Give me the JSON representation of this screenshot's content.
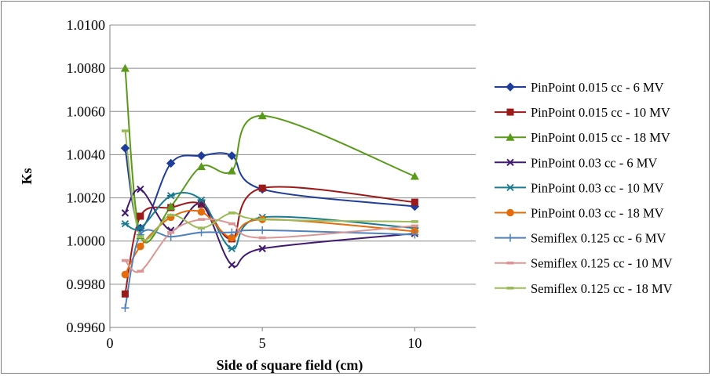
{
  "chart_data": {
    "type": "scatter",
    "title": "",
    "xlabel": "Side of square field (cm)",
    "ylabel": "Ks",
    "xlim": [
      0,
      12
    ],
    "ylim": [
      0.996,
      1.01
    ],
    "xticks": [
      0,
      5,
      10
    ],
    "xtick_labels": [
      "0",
      "5",
      "10"
    ],
    "yticks": [
      0.996,
      0.998,
      1.0,
      1.002,
      1.004,
      1.006,
      1.008,
      1.01
    ],
    "ytick_labels": [
      "0.9960",
      "0.9980",
      "1.0000",
      "1.0020",
      "1.0040",
      "1.0060",
      "1.0080",
      "1.0100"
    ],
    "grid": "horizontal",
    "legend_position": "right",
    "smooth_lines": true,
    "series": [
      {
        "name": "PinPoint 0.015 cc - 6 MV",
        "color": "#1f3d99",
        "marker": "diamond",
        "x": [
          0.5,
          1,
          2,
          3,
          4,
          5,
          10
        ],
        "y": [
          1.0043,
          1.0006,
          1.0036,
          1.00395,
          1.00395,
          1.0024,
          1.0016
        ]
      },
      {
        "name": "PinPoint 0.015 cc - 10 MV",
        "color": "#9b1b1b",
        "marker": "square",
        "x": [
          0.5,
          1,
          2,
          3,
          4,
          5,
          10
        ],
        "y": [
          0.99755,
          1.00115,
          1.00155,
          1.0017,
          1.0001,
          1.00245,
          1.0018
        ]
      },
      {
        "name": "PinPoint 0.015 cc - 18 MV",
        "color": "#5a9a1a",
        "marker": "triangle",
        "x": [
          0.5,
          1,
          2,
          3,
          4,
          5,
          10
        ],
        "y": [
          1.008,
          1.00025,
          1.0016,
          1.00345,
          1.00325,
          1.0058,
          1.003
        ]
      },
      {
        "name": "PinPoint 0.03 cc - 6 MV",
        "color": "#3f1a6e",
        "marker": "x",
        "x": [
          0.5,
          1,
          2,
          3,
          4,
          5,
          10
        ],
        "y": [
          1.0013,
          1.0024,
          1.0005,
          1.0017,
          0.9989,
          0.99965,
          1.00035
        ]
      },
      {
        "name": "PinPoint 0.03 cc - 10 MV",
        "color": "#1a7a90",
        "marker": "asterisk",
        "x": [
          0.5,
          1,
          2,
          3,
          4,
          5,
          10
        ],
        "y": [
          1.0008,
          1.0006,
          1.0021,
          1.0019,
          0.99965,
          1.0011,
          1.0006
        ]
      },
      {
        "name": "PinPoint 0.03 cc - 18 MV",
        "color": "#e46c0a",
        "marker": "circle",
        "x": [
          0.5,
          1,
          2,
          3,
          4,
          5,
          10
        ],
        "y": [
          0.99845,
          0.99975,
          1.0011,
          1.00135,
          1.00015,
          1.001,
          1.00045
        ]
      },
      {
        "name": "Semiflex 0.125 cc - 6 MV",
        "color": "#4f81bd",
        "marker": "plus",
        "x": [
          0.5,
          1,
          2,
          3,
          4,
          5,
          10
        ],
        "y": [
          0.9969,
          1.0003,
          1.0002,
          1.0004,
          1.0004,
          1.0005,
          1.0003
        ]
      },
      {
        "name": "Semiflex 0.125 cc - 10 MV",
        "color": "#d99694",
        "marker": "dash",
        "x": [
          0.5,
          1,
          2,
          3,
          4,
          5,
          10
        ],
        "y": [
          0.9991,
          0.9986,
          1.0004,
          1.001,
          1.0008,
          1.00015,
          1.0007
        ]
      },
      {
        "name": "Semiflex 0.125 cc - 18 MV",
        "color": "#9bbb59",
        "marker": "dash",
        "x": [
          0.5,
          1,
          2,
          3,
          4,
          5,
          10
        ],
        "y": [
          1.0051,
          1.0002,
          1.0012,
          1.0006,
          1.0013,
          1.001,
          1.0009
        ]
      }
    ]
  }
}
